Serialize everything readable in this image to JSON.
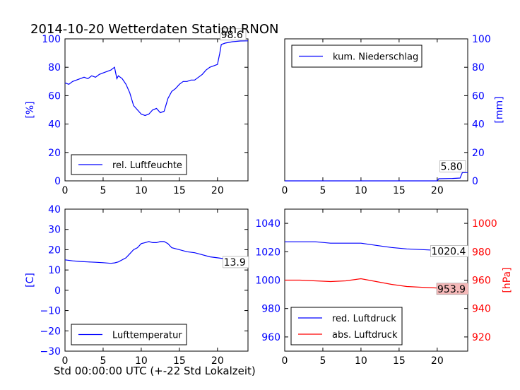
{
  "title": "2014-10-20 Wetterdaten Station RNON",
  "xlabel": "Std 00:00:00 UTC (+-22 Std Lokalzeit)",
  "colors": {
    "blue": "#0000ff",
    "red": "#ff0000",
    "annot_bg": "#f4b8b8"
  },
  "chart_data": [
    {
      "id": "humidity",
      "type": "line",
      "xlim": [
        0,
        24
      ],
      "ylim": [
        0,
        100
      ],
      "xticks": [
        "0",
        "5",
        "10",
        "15",
        "20"
      ],
      "yticks": [
        "0",
        "20",
        "40",
        "60",
        "80",
        "100"
      ],
      "ylabel": "[%]",
      "legend": "bottom-left",
      "annotation": "98.6",
      "series": [
        {
          "name": "rel. Luftfeuchte",
          "color": "#0000ff",
          "x": [
            0,
            0.5,
            1,
            1.5,
            2,
            2.5,
            3,
            3.5,
            4,
            4.5,
            5,
            5.5,
            6,
            6.5,
            6.8,
            7,
            7.5,
            8,
            8.5,
            9,
            9.5,
            10,
            10.5,
            11,
            11.5,
            12,
            12.5,
            13,
            13.5,
            14,
            14.5,
            15,
            15.5,
            16,
            16.5,
            17,
            17.5,
            18,
            18.5,
            19,
            19.5,
            20,
            20.3,
            20.5,
            21,
            22,
            23,
            24
          ],
          "y": [
            69,
            68,
            70,
            71,
            72,
            73,
            72,
            74,
            73,
            75,
            76,
            77,
            78,
            80,
            72,
            74,
            72,
            68,
            62,
            53,
            50,
            47,
            46,
            47,
            50,
            51,
            48,
            49,
            58,
            63,
            65,
            68,
            70,
            70,
            71,
            71,
            73,
            75,
            78,
            80,
            81,
            82,
            90,
            96,
            97,
            98,
            98.5,
            98.6
          ]
        }
      ]
    },
    {
      "id": "precip",
      "type": "line",
      "xlim": [
        0,
        24
      ],
      "ylim": [
        0,
        100
      ],
      "xticks": [
        "0",
        "5",
        "10",
        "15",
        "20"
      ],
      "yticks": [
        "0",
        "20",
        "40",
        "60",
        "80",
        "100"
      ],
      "ylabel": "[mm]",
      "legend": "top-left",
      "annotation": "5.80",
      "series": [
        {
          "name": "kum. Niederschlag",
          "color": "#0000ff",
          "x": [
            0,
            20,
            20.2,
            22,
            23,
            23.3,
            24
          ],
          "y": [
            0,
            0,
            1.5,
            1.7,
            2.0,
            5.8,
            5.8
          ]
        }
      ]
    },
    {
      "id": "temperature",
      "type": "line",
      "xlim": [
        0,
        24
      ],
      "ylim": [
        -30,
        40
      ],
      "xticks": [
        "0",
        "5",
        "10",
        "15",
        "20"
      ],
      "yticks": [
        "−30",
        "−20",
        "−10",
        "0",
        "10",
        "20",
        "30",
        "40"
      ],
      "ylabel": "[C]",
      "legend": "bottom-left",
      "annotation": "13.9",
      "series": [
        {
          "name": "Lufttemperatur",
          "color": "#0000ff",
          "x": [
            0,
            1,
            2,
            3,
            4,
            5,
            6,
            6.5,
            7,
            8,
            8.5,
            9,
            9.5,
            10,
            10.5,
            11,
            11.5,
            12,
            12.5,
            13,
            13.5,
            14,
            15,
            16,
            17,
            18,
            19,
            20,
            21,
            22,
            23,
            24
          ],
          "y": [
            15,
            14.5,
            14.2,
            14,
            13.8,
            13.6,
            13.3,
            13.5,
            14,
            16,
            18,
            20,
            21,
            23,
            23.5,
            24,
            23.5,
            23.5,
            24,
            24,
            23,
            21,
            20,
            19,
            18.5,
            17.5,
            16.5,
            16,
            15.5,
            15,
            14.5,
            13.9
          ]
        }
      ]
    },
    {
      "id": "pressure",
      "type": "line",
      "xlim": [
        0,
        24
      ],
      "ylim_left": [
        950,
        1050
      ],
      "ylim_right": [
        910,
        1010
      ],
      "xticks": [
        "0",
        "5",
        "10",
        "15",
        "20"
      ],
      "yticks_left": [
        "960",
        "980",
        "1000",
        "1020",
        "1040"
      ],
      "yticks_right": [
        "920",
        "940",
        "960",
        "980",
        "1000"
      ],
      "ylabel_right": "[hPa]",
      "legend": "bottom-left",
      "annotations": [
        "1020.4",
        "953.9"
      ],
      "series": [
        {
          "name": "red. Luftdruck",
          "color": "#0000ff",
          "axis": "left",
          "x": [
            0,
            2,
            4,
            6,
            8,
            10,
            12,
            14,
            16,
            18,
            20,
            22,
            24
          ],
          "y": [
            1027,
            1027,
            1027,
            1026,
            1026,
            1026,
            1024.5,
            1023,
            1022,
            1021.5,
            1021,
            1021,
            1020.4
          ]
        },
        {
          "name": "abs. Luftdruck",
          "color": "#ff0000",
          "axis": "right",
          "x": [
            0,
            2,
            4,
            6,
            8,
            10,
            12,
            14,
            16,
            18,
            20,
            22,
            24
          ],
          "y": [
            960,
            960,
            959.5,
            959,
            959.5,
            961,
            959,
            957,
            955.5,
            955,
            954.5,
            954.5,
            953.9
          ]
        }
      ]
    }
  ]
}
